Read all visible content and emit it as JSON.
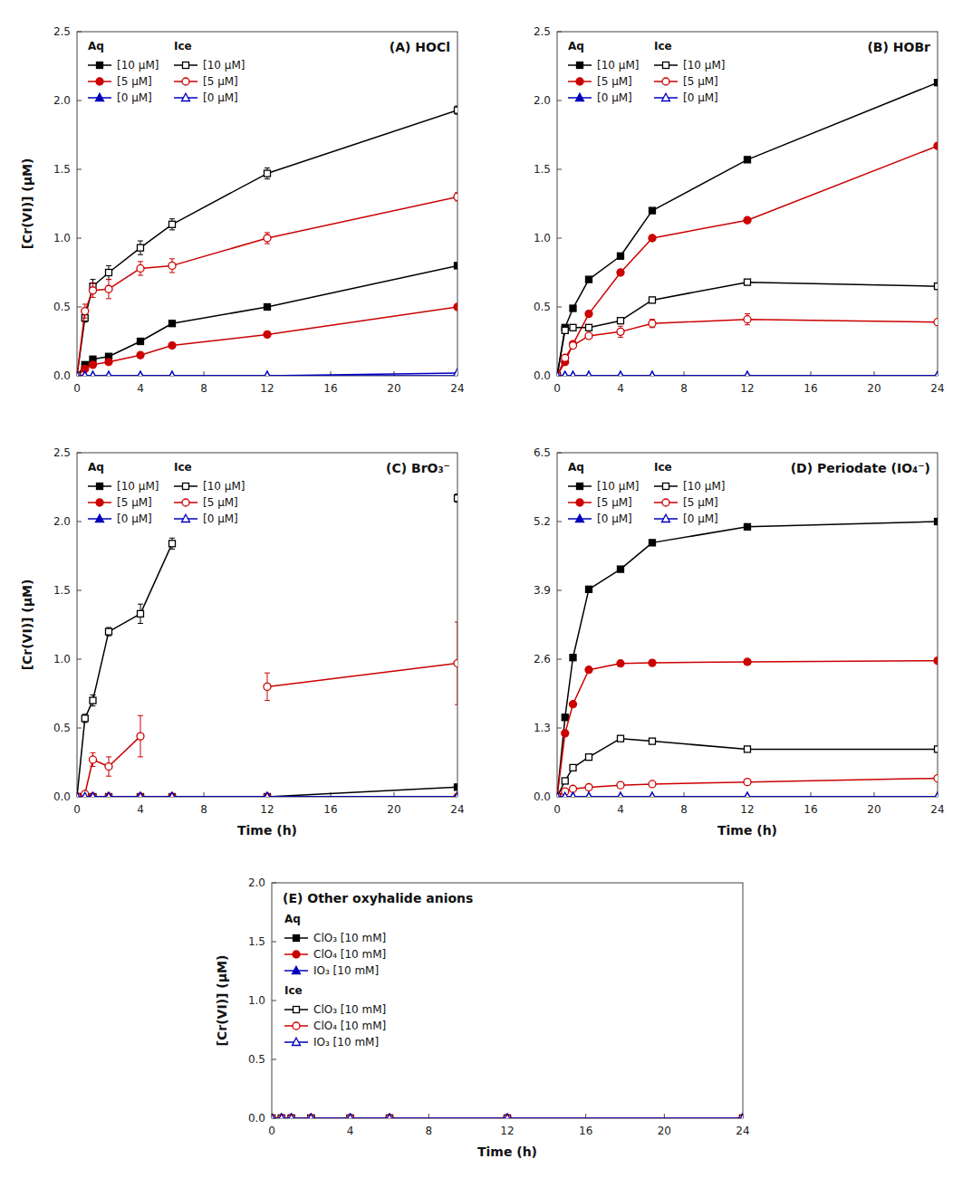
{
  "chart_data": [
    {
      "type": "line",
      "title": "(A) HOCl",
      "y_label": "[Cr(VI)] (μM)",
      "x": [
        0,
        0.5,
        1,
        2,
        4,
        6,
        12,
        24
      ],
      "xlim": [
        0,
        24
      ],
      "xticks": [
        0,
        4,
        8,
        12,
        16,
        20,
        24
      ],
      "ylim": [
        0,
        2.5
      ],
      "yticks": [
        {
          "value": 0,
          "label": "0.0"
        },
        0.5,
        {
          "value": 1,
          "label": "1.0"
        },
        1.5,
        {
          "value": 2,
          "label": "2.0"
        },
        2.5
      ],
      "series": [
        {
          "name": "[10 μM]",
          "group": "Aq",
          "color": "#000000",
          "marker": "square",
          "values": [
            0,
            0.08,
            0.12,
            0.14,
            0.25,
            0.38,
            0.5,
            0.8
          ]
        },
        {
          "name": "[5 μM]",
          "group": "Aq",
          "color": "#cc0000",
          "marker": "circle",
          "values": [
            0,
            0.05,
            0.08,
            0.1,
            0.15,
            0.22,
            0.3,
            0.5
          ]
        },
        {
          "name": "[0 μM]",
          "group": "Aq",
          "color": "#0000bb",
          "marker": "triangle",
          "values": [
            0,
            0.0,
            0.0,
            0.0,
            0.0,
            0.0,
            0.0,
            0.0
          ]
        },
        {
          "name": "[10 μM]",
          "group": "Ice",
          "color": "#000000",
          "marker": "square",
          "values": [
            0,
            0.42,
            0.65,
            0.75,
            0.93,
            1.1,
            1.47,
            1.93
          ],
          "errors": [
            null,
            0.03,
            0.05,
            0.05,
            0.05,
            0.04,
            0.04,
            0.03
          ]
        },
        {
          "name": "[5 μM]",
          "group": "Ice",
          "color": "#cc0000",
          "marker": "circle",
          "values": [
            0,
            0.47,
            0.62,
            0.63,
            0.78,
            0.8,
            1.0,
            1.3
          ],
          "errors": [
            null,
            0.05,
            0.05,
            0.07,
            0.05,
            0.05,
            0.04,
            0.03
          ]
        },
        {
          "name": "[0 μM]",
          "group": "Ice",
          "color": "#0000bb",
          "marker": "triangle",
          "values": [
            0,
            0.0,
            0.0,
            0.0,
            0.0,
            0.0,
            0.0,
            0.02
          ]
        }
      ]
    },
    {
      "type": "line",
      "title": "(B) HOBr",
      "x": [
        0,
        0.5,
        1,
        2,
        4,
        6,
        12,
        24
      ],
      "xlim": [
        0,
        24
      ],
      "xticks": [
        0,
        4,
        8,
        12,
        16,
        20,
        24
      ],
      "ylim": [
        0,
        2.5
      ],
      "yticks": [
        {
          "value": 0,
          "label": "0.0"
        },
        0.5,
        {
          "value": 1,
          "label": "1.0"
        },
        1.5,
        {
          "value": 2,
          "label": "2.0"
        },
        2.5
      ],
      "series": [
        {
          "name": "[10 μM]",
          "group": "Aq",
          "color": "#000000",
          "marker": "square",
          "values": [
            0,
            0.35,
            0.49,
            0.7,
            0.87,
            1.2,
            1.57,
            2.13
          ]
        },
        {
          "name": "[5 μM]",
          "group": "Aq",
          "color": "#cc0000",
          "marker": "circle",
          "values": [
            0,
            0.1,
            0.23,
            0.45,
            0.75,
            1.0,
            1.13,
            1.67
          ]
        },
        {
          "name": "[0 μM]",
          "group": "Aq",
          "color": "#0000bb",
          "marker": "triangle",
          "values": [
            0,
            0.0,
            0.0,
            0.0,
            0.0,
            0.0,
            0.0,
            0.0
          ]
        },
        {
          "name": "[10 μM]",
          "group": "Ice",
          "color": "#000000",
          "marker": "square",
          "values": [
            0,
            0.33,
            0.35,
            0.35,
            0.4,
            0.55,
            0.68,
            0.65
          ],
          "errors": [
            null,
            0.02,
            0.02,
            0.02,
            0.02,
            0.02,
            0.02,
            0.02
          ]
        },
        {
          "name": "[5 μM]",
          "group": "Ice",
          "color": "#cc0000",
          "marker": "circle",
          "values": [
            0,
            0.13,
            0.22,
            0.29,
            0.32,
            0.38,
            0.41,
            0.39
          ],
          "errors": [
            null,
            0.02,
            0.02,
            0.02,
            0.04,
            0.03,
            0.04,
            0.02
          ]
        },
        {
          "name": "[0 μM]",
          "group": "Ice",
          "color": "#0000bb",
          "marker": "triangle",
          "values": [
            0,
            0.0,
            0.0,
            0.0,
            0.0,
            0.0,
            0.0,
            0.0
          ]
        }
      ]
    },
    {
      "type": "line",
      "title": "(C) BrO₃⁻",
      "x_label": "Time (h)",
      "y_label": "[Cr(VI)] (μM)",
      "x": [
        0,
        0.5,
        1,
        2,
        4,
        6,
        12,
        24
      ],
      "xlim": [
        0,
        24
      ],
      "xticks": [
        0,
        4,
        8,
        12,
        16,
        20,
        24
      ],
      "ylim": [
        0,
        2.5
      ],
      "yticks": [
        {
          "value": 0,
          "label": "0.0"
        },
        0.5,
        {
          "value": 1,
          "label": "1.0"
        },
        1.5,
        {
          "value": 2,
          "label": "2.0"
        },
        2.5
      ],
      "series": [
        {
          "name": "[10 μM]",
          "group": "Aq",
          "color": "#000000",
          "marker": "square",
          "values": [
            0,
            0.0,
            0.0,
            0.0,
            0.0,
            0.0,
            0.0,
            0.07
          ]
        },
        {
          "name": "[5 μM]",
          "group": "Aq",
          "color": "#cc0000",
          "marker": "circle",
          "values": [
            0,
            0.0,
            0.0,
            0.0,
            0.0,
            0.0,
            0.0,
            0.0
          ]
        },
        {
          "name": "[0 μM]",
          "group": "Aq",
          "color": "#0000bb",
          "marker": "triangle",
          "values": [
            0,
            0.0,
            0.0,
            0.0,
            0.0,
            0.0,
            0.0,
            0.0
          ]
        },
        {
          "name": "[10 μM]",
          "group": "Ice",
          "color": "#000000",
          "marker": "square",
          "values": [
            0,
            0.57,
            0.7,
            1.2,
            1.33,
            1.84,
            null,
            2.17
          ],
          "errors": [
            null,
            0.03,
            0.04,
            0.03,
            0.07,
            0.04,
            null,
            0.03
          ]
        },
        {
          "name": "[5 μM]",
          "group": "Ice",
          "color": "#cc0000",
          "marker": "circle",
          "values": [
            0,
            0.02,
            0.27,
            0.22,
            0.44,
            null,
            0.8,
            0.97
          ],
          "errors": [
            null,
            0.02,
            0.05,
            0.07,
            0.15,
            null,
            0.1,
            0.3
          ]
        },
        {
          "name": "[0 μM]",
          "group": "Ice",
          "color": "#0000bb",
          "marker": "triangle",
          "values": [
            0,
            0.0,
            0.0,
            0.0,
            0.0,
            0.0,
            0.0,
            0.0
          ]
        }
      ]
    },
    {
      "type": "line",
      "title": "(D) Periodate (IO₄⁻)",
      "x_label": "Time (h)",
      "x": [
        0,
        0.5,
        1,
        2,
        4,
        6,
        12,
        24
      ],
      "xlim": [
        0,
        24
      ],
      "xticks": [
        0,
        4,
        8,
        12,
        16,
        20,
        24
      ],
      "ylim": [
        0,
        6.5
      ],
      "yticks": [
        {
          "value": 0,
          "label": "0.0"
        },
        1.3,
        2.6,
        3.9,
        5.2,
        6.5
      ],
      "series": [
        {
          "name": "[10 μM]",
          "group": "Aq",
          "color": "#000000",
          "marker": "square",
          "values": [
            0,
            1.5,
            2.63,
            3.92,
            4.3,
            4.8,
            5.1,
            5.2
          ]
        },
        {
          "name": "[5 μM]",
          "group": "Aq",
          "color": "#cc0000",
          "marker": "circle",
          "values": [
            0,
            1.2,
            1.75,
            2.4,
            2.52,
            2.53,
            2.55,
            2.57
          ]
        },
        {
          "name": "[0 μM]",
          "group": "Aq",
          "color": "#0000bb",
          "marker": "triangle",
          "values": [
            0,
            0.0,
            0.0,
            0.0,
            0.0,
            0.0,
            0.0,
            0.0
          ]
        },
        {
          "name": "[10 μM]",
          "group": "Ice",
          "color": "#000000",
          "marker": "square",
          "values": [
            0,
            0.3,
            0.55,
            0.75,
            1.1,
            1.05,
            0.9,
            0.9
          ]
        },
        {
          "name": "[5 μM]",
          "group": "Ice",
          "color": "#cc0000",
          "marker": "circle",
          "values": [
            0,
            0.1,
            0.15,
            0.18,
            0.22,
            0.24,
            0.28,
            0.35
          ]
        },
        {
          "name": "[0 μM]",
          "group": "Ice",
          "color": "#0000bb",
          "marker": "triangle",
          "values": [
            0,
            0.0,
            0.0,
            0.0,
            0.0,
            0.0,
            0.0,
            0.0
          ]
        }
      ]
    },
    {
      "type": "line",
      "title": "(E) Other oxyhalide anions",
      "x_label": "Time (h)",
      "y_label": "[Cr(VI)] (μM)",
      "x": [
        0,
        0.5,
        1,
        2,
        4,
        6,
        12,
        24
      ],
      "xlim": [
        0,
        24
      ],
      "xticks": [
        0,
        4,
        8,
        12,
        16,
        20,
        24
      ],
      "ylim": [
        0,
        2.0
      ],
      "yticks": [
        {
          "value": 0,
          "label": "0.0"
        },
        0.5,
        {
          "value": 1,
          "label": "1.0"
        },
        1.5,
        {
          "value": 2,
          "label": "2.0"
        }
      ],
      "series": [
        {
          "name": "ClO₃ [10 mM]",
          "group": "Aq",
          "color": "#000000",
          "marker": "square",
          "values": [
            0,
            0.0,
            0.0,
            0.0,
            0.0,
            0.0,
            0.0,
            0.0
          ]
        },
        {
          "name": "ClO₄ [10 mM]",
          "group": "Aq",
          "color": "#cc0000",
          "marker": "circle",
          "values": [
            0,
            0.0,
            0.0,
            0.0,
            0.0,
            0.0,
            0.0,
            0.0
          ]
        },
        {
          "name": "IO₃ [10 mM]",
          "group": "Aq",
          "color": "#0000bb",
          "marker": "triangle",
          "values": [
            0,
            0.0,
            0.0,
            0.0,
            0.0,
            0.0,
            0.0,
            0.0
          ]
        },
        {
          "name": "ClO₃ [10 mM]",
          "group": "Ice",
          "color": "#000000",
          "marker": "square",
          "values": [
            0,
            0.0,
            0.0,
            0.0,
            0.0,
            0.0,
            0.0,
            0.0
          ]
        },
        {
          "name": "ClO₄ [10 mM]",
          "group": "Ice",
          "color": "#cc0000",
          "marker": "circle",
          "values": [
            0,
            0.0,
            0.0,
            0.0,
            0.0,
            0.0,
            0.0,
            0.0
          ]
        },
        {
          "name": "IO₃ [10 mM]",
          "group": "Ice",
          "color": "#0000bb",
          "marker": "triangle",
          "values": [
            0,
            0.0,
            0.0,
            0.0,
            0.0,
            0.0,
            0.0,
            0.0
          ]
        }
      ]
    }
  ]
}
